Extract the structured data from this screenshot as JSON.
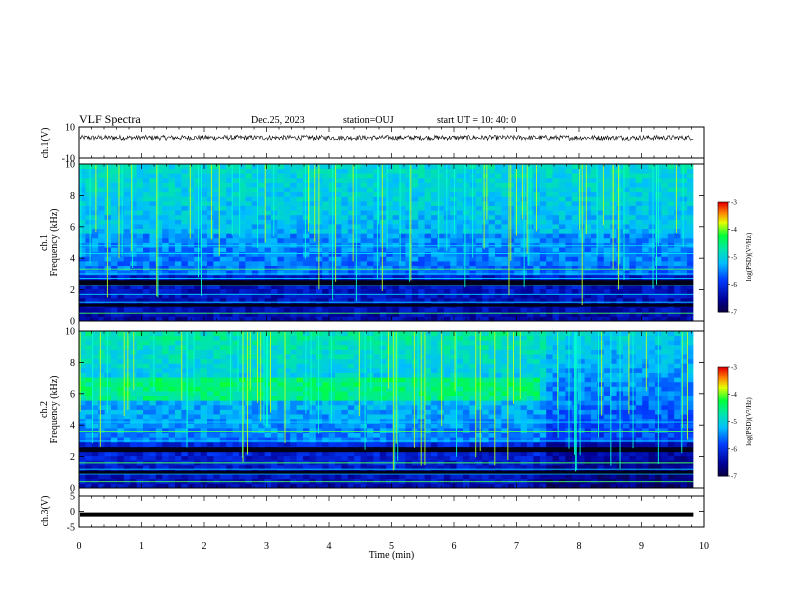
{
  "header": {
    "title": "VLF Spectra",
    "date": "Dec.25, 2023",
    "station": "station=OUJ",
    "start_ut": "start UT =  10: 40: 0"
  },
  "chart_data": [
    {
      "type": "line",
      "panel": "ch1-waveform",
      "ylabel": "ch.1(V)",
      "ylim": [
        -10,
        10
      ],
      "yticks": [
        "10",
        "-10"
      ],
      "x": [
        0,
        9.83
      ],
      "values": [
        3,
        3
      ],
      "note_series_style": "dense noisy trace around +3"
    },
    {
      "type": "heatmap",
      "panel": "ch1-spectrogram",
      "ylabel": "ch.1 Frequency (kHz)",
      "ylim": [
        0,
        10
      ],
      "yticks": [
        "0",
        "2",
        "4",
        "6",
        "8",
        "10"
      ],
      "colorbar": {
        "label": "log(PSD)(V²/Hz)",
        "range": [
          -7,
          -3
        ],
        "ticks": [
          "-3",
          "-4",
          "-5",
          "-6",
          "-7"
        ]
      }
    },
    {
      "type": "heatmap",
      "panel": "ch2-spectrogram",
      "ylabel": "ch.2 Frequency (kHz)",
      "ylim": [
        0,
        10
      ],
      "yticks": [
        "0",
        "2",
        "4",
        "6",
        "8",
        "10"
      ],
      "colorbar": {
        "label": "log(PSD)(V²/Hz)",
        "range": [
          -7,
          -3
        ],
        "ticks": [
          "-3",
          "-4",
          "-5",
          "-6",
          "-7"
        ]
      }
    },
    {
      "type": "line",
      "panel": "ch3-waveform",
      "ylabel": "ch.3(V)",
      "ylim": [
        -5,
        5
      ],
      "yticks": [
        "5",
        "0",
        "-5"
      ],
      "x": [
        0,
        9.83
      ],
      "values": [
        -1,
        -1
      ]
    }
  ],
  "xaxis": {
    "label": "Time (min)",
    "ticks": [
      "0",
      "1",
      "2",
      "3",
      "4",
      "5",
      "6",
      "7",
      "8",
      "9",
      "10"
    ],
    "xlim": [
      0,
      10
    ]
  },
  "colors": {
    "frame": "#000000",
    "waveform": "#000000"
  }
}
